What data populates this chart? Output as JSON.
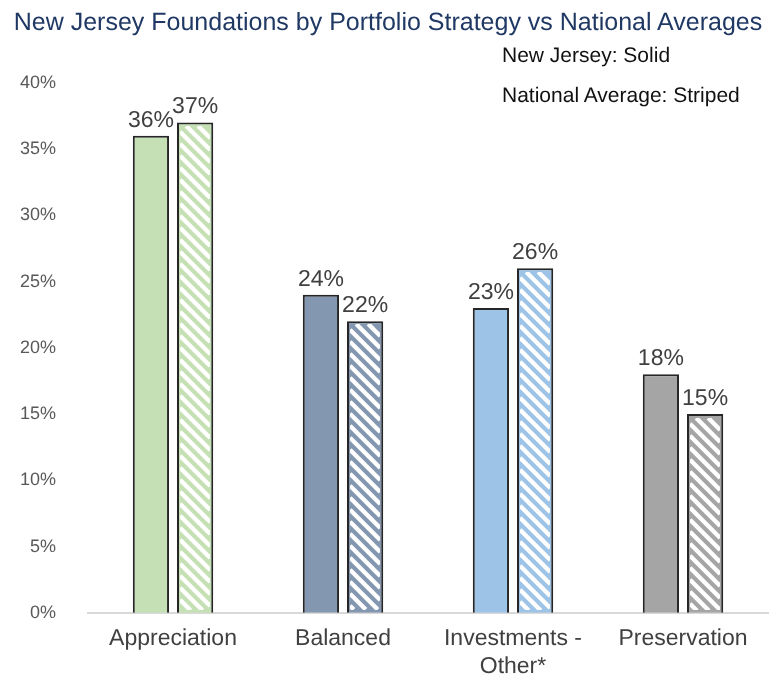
{
  "chart_data": {
    "type": "bar",
    "title": "New Jersey Foundations by Portfolio Strategy vs National Averages",
    "categories": [
      "Appreciation",
      "Balanced",
      "Investments - Other*",
      "Preservation"
    ],
    "series": [
      {
        "colors": [
          "#c5e0b4",
          "#8497b0",
          "#9dc3e6",
          "#a5a5a5"
        ],
        "values": [
          36,
          24,
          23,
          18
        ],
        "value_labels": [
          "36%",
          "24%",
          "23%",
          "18%"
        ]
      },
      {
        "colors": [
          "#c5e0b4",
          "#8497b0",
          "#9dc3e6",
          "#a5a5a5"
        ],
        "values": [
          37,
          22,
          26,
          15
        ],
        "value_labels": [
          "37%",
          "22%",
          "26%",
          "15%"
        ]
      }
    ],
    "ylim": [
      0,
      40
    ],
    "yticks": [
      {
        "value": 0,
        "label": "0%"
      },
      {
        "value": 5,
        "label": "5%"
      },
      {
        "value": 10,
        "label": "10%"
      },
      {
        "value": 15,
        "label": "15%"
      },
      {
        "value": 20,
        "label": "20%"
      },
      {
        "value": 25,
        "label": "25%"
      },
      {
        "value": 30,
        "label": "30%"
      },
      {
        "value": 35,
        "label": "35%"
      },
      {
        "value": 40,
        "label": "40%"
      }
    ],
    "annotations": [
      "New Jersey:  Solid",
      "National Average: Striped"
    ],
    "grid": false,
    "legend": false
  }
}
